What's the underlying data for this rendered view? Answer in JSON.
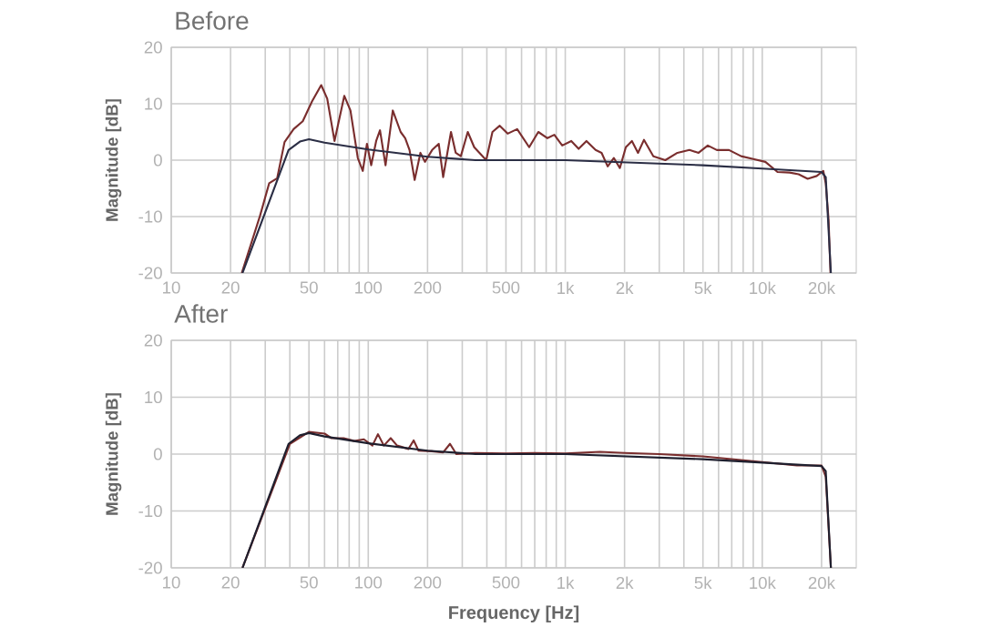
{
  "chart_data": [
    {
      "type": "line",
      "title": "Before",
      "ylabel": "Magnitude [dB]",
      "log": "x",
      "grid": true,
      "xlim": [
        10,
        30000
      ],
      "ylim": [
        -20,
        20
      ],
      "yticks": [
        -20,
        -10,
        0,
        10,
        20
      ],
      "xticks": [
        10,
        20,
        {
          "value": 30,
          "label": null
        },
        {
          "value": 40,
          "label": null
        },
        50,
        {
          "value": 60,
          "label": null
        },
        {
          "value": 70,
          "label": null
        },
        {
          "value": 80,
          "label": null
        },
        {
          "value": 90,
          "label": null
        },
        100,
        200,
        {
          "value": 300,
          "label": null
        },
        {
          "value": 400,
          "label": null
        },
        500,
        {
          "value": 600,
          "label": null
        },
        {
          "value": 700,
          "label": null
        },
        {
          "value": 800,
          "label": null
        },
        {
          "value": 900,
          "label": null
        },
        {
          "value": 1000,
          "label": "1k"
        },
        {
          "value": 2000,
          "label": "2k"
        },
        {
          "value": 3000,
          "label": null
        },
        {
          "value": 4000,
          "label": null
        },
        {
          "value": 5000,
          "label": "5k"
        },
        {
          "value": 6000,
          "label": null
        },
        {
          "value": 7000,
          "label": null
        },
        {
          "value": 8000,
          "label": null
        },
        {
          "value": 9000,
          "label": null
        },
        {
          "value": 10000,
          "label": "10k"
        },
        {
          "value": 20000,
          "label": "20k"
        }
      ],
      "series": [
        {
          "color": "#7a2e2e",
          "x": [
            22.8,
            28.2,
            31.4,
            34.5,
            37.6,
            41.8,
            46.5,
            51.8,
            57.7,
            61.9,
            67.4,
            75.6,
            81.2,
            88.5,
            93.8,
            98.5,
            103.5,
            109.7,
            114.7,
            122.4,
            133.2,
            146,
            154,
            162,
            172,
            184,
            194,
            211,
            228,
            240,
            263,
            278,
            295,
            320,
            345,
            397,
            427,
            465,
            510,
            570,
            656,
            730,
            812,
            880,
            965,
            1073,
            1169,
            1281,
            1425,
            1529,
            1642,
            1764,
            1893,
            2030,
            2180,
            2340,
            2510,
            2800,
            3220,
            3710,
            4270,
            4750,
            5290,
            5880,
            6780,
            7810,
            9000,
            10370,
            11950,
            13770,
            15300,
            17000,
            18900,
            20400,
            21000,
            21700,
            22200
          ],
          "values": [
            -20,
            -9.9,
            -4.1,
            -3.2,
            3.2,
            5.5,
            6.9,
            10.4,
            13.3,
            10.9,
            3.4,
            11.4,
            8.8,
            0.4,
            -1.9,
            2.9,
            -0.9,
            3.4,
            5.3,
            -0.9,
            8.8,
            5,
            3.9,
            1.8,
            -3.5,
            1.3,
            -0.3,
            1.8,
            2.9,
            -3,
            5,
            1.3,
            0.7,
            5,
            2.3,
            0,
            5,
            6.1,
            4.7,
            5.5,
            2.3,
            5,
            3.9,
            4.5,
            2.6,
            3.4,
            2,
            3.4,
            1.8,
            1.3,
            -1.1,
            0.4,
            -1.4,
            2.3,
            3.4,
            1.3,
            3.6,
            0.7,
            0,
            1.3,
            1.8,
            1.3,
            2.6,
            1.8,
            1.8,
            0.7,
            0.2,
            -0.3,
            -2.1,
            -2.2,
            -2.5,
            -3.3,
            -2.8,
            -1.9,
            -4.1,
            -10.5,
            -20
          ]
        },
        {
          "color": "#2b2e45",
          "x": [
            23,
            39.4,
            45,
            50,
            60,
            100,
            200,
            350,
            1000,
            5000,
            10000,
            20000,
            21000,
            22300
          ],
          "values": [
            -20,
            1.8,
            3.3,
            3.7,
            3.1,
            1.9,
            0.6,
            0,
            0,
            -0.9,
            -1.5,
            -2.1,
            -3,
            -20
          ]
        }
      ]
    },
    {
      "type": "line",
      "title": "After",
      "ylabel": "Magnitude [dB]",
      "xlabel": "Frequency [Hz]",
      "log": "x",
      "grid": true,
      "xlim": [
        10,
        30000
      ],
      "ylim": [
        -20,
        20
      ],
      "yticks": [
        -20,
        -10,
        0,
        10,
        20
      ],
      "xticks": [
        10,
        20,
        {
          "value": 30,
          "label": null
        },
        {
          "value": 40,
          "label": null
        },
        50,
        {
          "value": 60,
          "label": null
        },
        {
          "value": 70,
          "label": null
        },
        {
          "value": 80,
          "label": null
        },
        {
          "value": 90,
          "label": null
        },
        100,
        200,
        {
          "value": 300,
          "label": null
        },
        {
          "value": 400,
          "label": null
        },
        500,
        {
          "value": 600,
          "label": null
        },
        {
          "value": 700,
          "label": null
        },
        {
          "value": 800,
          "label": null
        },
        {
          "value": 900,
          "label": null
        },
        {
          "value": 1000,
          "label": "1k"
        },
        {
          "value": 2000,
          "label": "2k"
        },
        {
          "value": 3000,
          "label": null
        },
        {
          "value": 4000,
          "label": null
        },
        {
          "value": 5000,
          "label": "5k"
        },
        {
          "value": 6000,
          "label": null
        },
        {
          "value": 7000,
          "label": null
        },
        {
          "value": 8000,
          "label": null
        },
        {
          "value": 9000,
          "label": null
        },
        {
          "value": 10000,
          "label": "10k"
        },
        {
          "value": 20000,
          "label": "20k"
        }
      ],
      "series": [
        {
          "color": "#7a2e2e",
          "x": [
            23,
            40,
            50,
            60,
            65,
            75,
            85,
            95,
            105,
            112,
            120,
            130,
            140,
            160,
            170,
            180,
            210,
            240,
            260,
            280,
            350,
            500,
            700,
            1000,
            1500,
            2000,
            3000,
            5000,
            10000,
            15000,
            20000,
            21000,
            22300
          ],
          "values": [
            -20,
            1.8,
            3.9,
            3.6,
            2.8,
            2.8,
            2.3,
            2.6,
            1.5,
            3.5,
            1.5,
            2.8,
            1.5,
            0.9,
            2.4,
            0.6,
            0.5,
            0.3,
            1.8,
            0,
            0.2,
            0.1,
            0.2,
            0.1,
            0.4,
            0.2,
            0,
            -0.4,
            -1.4,
            -2,
            -2,
            -4,
            -20
          ]
        },
        {
          "color": "#1e1f2e",
          "x": [
            23,
            39.4,
            45,
            50,
            60,
            100,
            200,
            350,
            1000,
            5000,
            10000,
            20000,
            21000,
            22300
          ],
          "values": [
            -20,
            1.8,
            3.3,
            3.7,
            3.1,
            1.9,
            0.6,
            0,
            0,
            -0.9,
            -1.5,
            -2.1,
            -3,
            -20
          ]
        }
      ]
    }
  ]
}
